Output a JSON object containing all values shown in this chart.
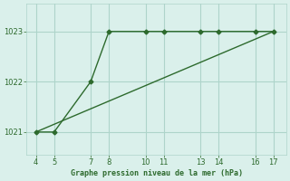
{
  "line1_x": [
    4,
    5,
    7,
    8,
    10,
    11,
    13,
    14,
    16,
    17
  ],
  "line1_y": [
    1021,
    1021,
    1022,
    1023,
    1023,
    1023,
    1023,
    1023,
    1023,
    1023
  ],
  "line2_x": [
    4,
    17
  ],
  "line2_y": [
    1021,
    1023
  ],
  "line_color": "#2d6a2d",
  "marker": "D",
  "marker_size": 2.5,
  "background_color": "#daf0eb",
  "grid_color": "#aed4ca",
  "xlabel": "Graphe pression niveau de la mer (hPa)",
  "xticks": [
    4,
    5,
    7,
    8,
    10,
    11,
    13,
    14,
    16,
    17
  ],
  "yticks": [
    1021,
    1022,
    1023
  ],
  "xlim": [
    3.5,
    17.7
  ],
  "ylim": [
    1020.55,
    1023.55
  ]
}
